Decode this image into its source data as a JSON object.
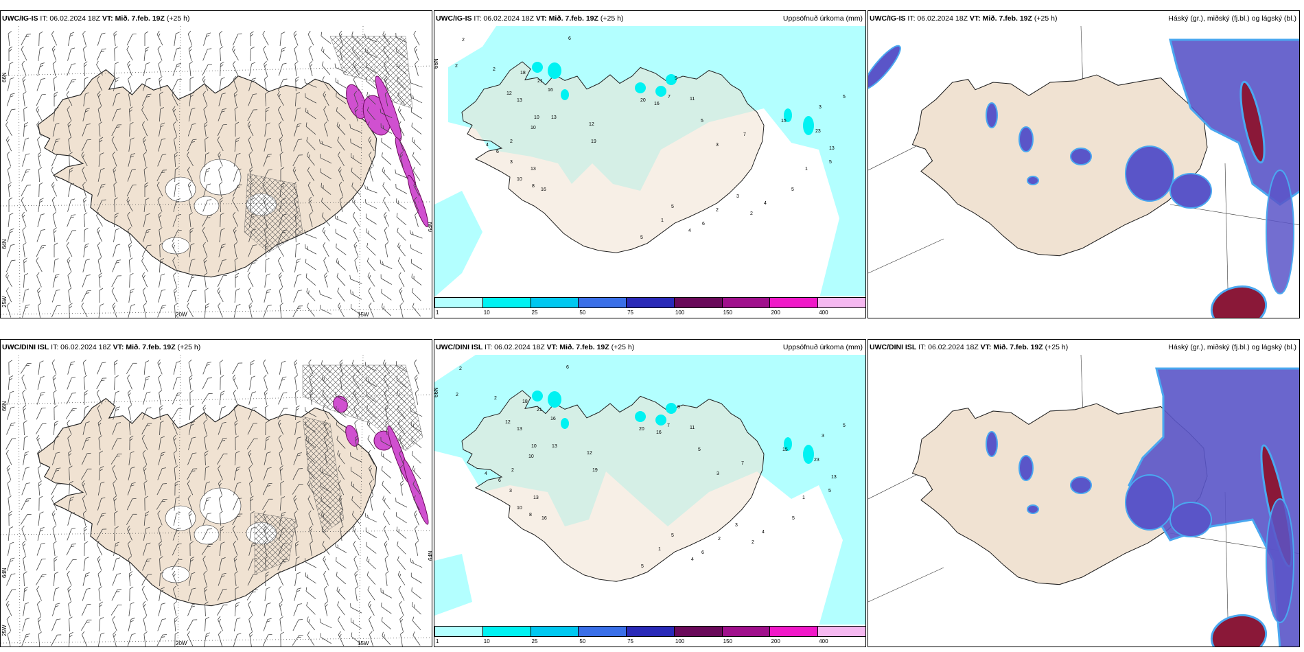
{
  "panels": [
    {
      "model": "UWC/IG-IS",
      "it": "IT: 06.02.2024 18Z",
      "vt_label": "VT:",
      "vt": "Mið. 7.feb. 19Z",
      "lead": "(+25 h)",
      "right": "",
      "type": "wind"
    },
    {
      "model": "UWC/IG-IS",
      "it": "IT: 06.02.2024 18Z",
      "vt_label": "VT:",
      "vt": "Mið. 7.feb. 19Z",
      "lead": "(+25 h)",
      "right": "Uppsöfnuð úrkoma (mm)",
      "type": "precip"
    },
    {
      "model": "UWC/IG-IS",
      "it": "IT: 06.02.2024 18Z",
      "vt_label": "VT:",
      "vt": "Mið. 7.feb. 19Z",
      "lead": "(+25 h)",
      "right": "Háský (gr.), miðský (fj.bl.) og lágský (bl.)",
      "type": "cloud"
    },
    {
      "model": "UWC/DINI ISL",
      "it": "IT: 06.02.2024 18Z",
      "vt_label": "VT:",
      "vt": "Mið. 7.feb. 19Z",
      "lead": "(+25 h)",
      "right": "",
      "type": "wind"
    },
    {
      "model": "UWC/DINI ISL",
      "it": "IT: 06.02.2024 18Z",
      "vt_label": "VT:",
      "vt": "Mið. 7.feb. 19Z",
      "lead": "(+25 h)",
      "right": "Uppsöfnuð úrkoma (mm)",
      "type": "precip"
    },
    {
      "model": "UWC/DINI ISL",
      "it": "IT: 06.02.2024 18Z",
      "vt_label": "VT:",
      "vt": "Mið. 7.feb. 19Z",
      "lead": "(+25 h)",
      "right": "Háský (gr.), miðský (fj.bl.) og lágský (bl.)",
      "type": "cloud"
    }
  ],
  "axis_labels": {
    "lat66": "66N",
    "lat64": "64N",
    "lat64b": "64N",
    "lon25": "25W",
    "lon20": "20W",
    "lon15": "15W"
  },
  "colorbar": {
    "ticks": [
      "1",
      "10",
      "25",
      "50",
      "75",
      "100",
      "150",
      "200",
      "400"
    ],
    "colors": [
      "#b3ffff",
      "#00f2f2",
      "#00c8f0",
      "#3a6fe8",
      "#2a2ab8",
      "#6a0a5a",
      "#a0108c",
      "#f018c8",
      "#f5b8f0"
    ]
  },
  "precip_values": [
    "2",
    "2",
    "6",
    "2",
    "12",
    "18",
    "21",
    "16",
    "13",
    "10",
    "13",
    "10",
    "2",
    "4",
    "6",
    "3",
    "13",
    "10",
    "8",
    "16",
    "12",
    "19",
    "20",
    "16",
    "7",
    "9",
    "11",
    "5",
    "3",
    "7",
    "15",
    "23",
    "13",
    "5",
    "3",
    "5",
    "1",
    "5",
    "4",
    "2",
    "3",
    "2",
    "6",
    "4",
    "5",
    "1",
    "5"
  ],
  "colors": {
    "land": "#f0e2d2",
    "precip_light": "#b3ffff",
    "cloud_high": "#5a55c8",
    "cloud_low": "#8a1838",
    "cloud_mid": "#4aa8f0"
  }
}
